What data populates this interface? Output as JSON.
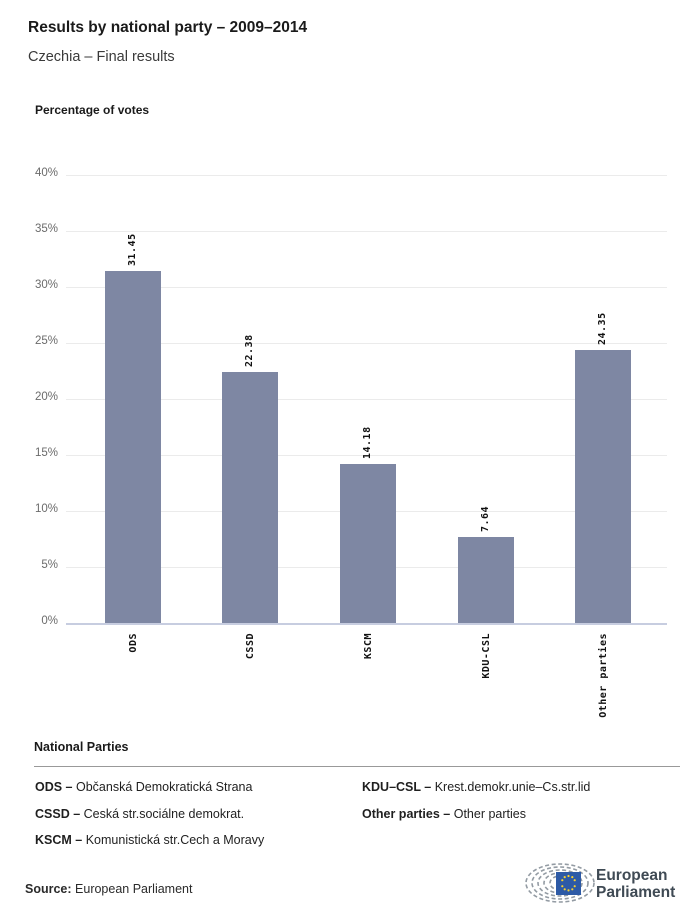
{
  "header": {
    "title": "Results by national party – 2009–2014",
    "subtitle": "Czechia – Final results"
  },
  "chart_data": {
    "type": "bar",
    "title": "Percentage of votes",
    "categories": [
      "ODS",
      "CSSD",
      "KSCM",
      "KDU-CSL",
      "Other parties"
    ],
    "values": [
      31.45,
      22.38,
      14.18,
      7.64,
      24.35
    ],
    "value_labels": [
      "31.45",
      "22.38",
      "14.18",
      "7.64",
      "24.35"
    ],
    "ylabel": "Percentage of votes",
    "xlabel": "",
    "ylim": [
      0,
      40
    ],
    "ytick_step": 5,
    "ytick_labels": [
      "0%",
      "5%",
      "10%",
      "15%",
      "20%",
      "25%",
      "30%",
      "35%",
      "40%"
    ],
    "grid": true,
    "legend_position": "none",
    "bar_color": "#7e87a3",
    "baseline_color": "#c7cde0"
  },
  "legend": {
    "heading": "National Parties",
    "items": [
      {
        "code": "ODS –",
        "name": "Občanská Demokratická Strana"
      },
      {
        "code": "CSSD –",
        "name": "Ceská str.sociálne demokrat."
      },
      {
        "code": "KSCM –",
        "name": "Komunistická str.Cech a Moravy"
      },
      {
        "code": "KDU–CSL –",
        "name": "Krest.demokr.unie–Cs.str.lid"
      },
      {
        "code": "Other parties –",
        "name": "Other parties"
      }
    ]
  },
  "footer": {
    "source_label": "Source:",
    "source_value": "European Parliament",
    "logo": {
      "line1": "European",
      "line2": "Parliament",
      "eu_blue": "#2d5aa6",
      "star_yellow": "#f8d12c",
      "hemicycle_gray": "#939ba3",
      "text_color": "#3f4a54"
    }
  }
}
